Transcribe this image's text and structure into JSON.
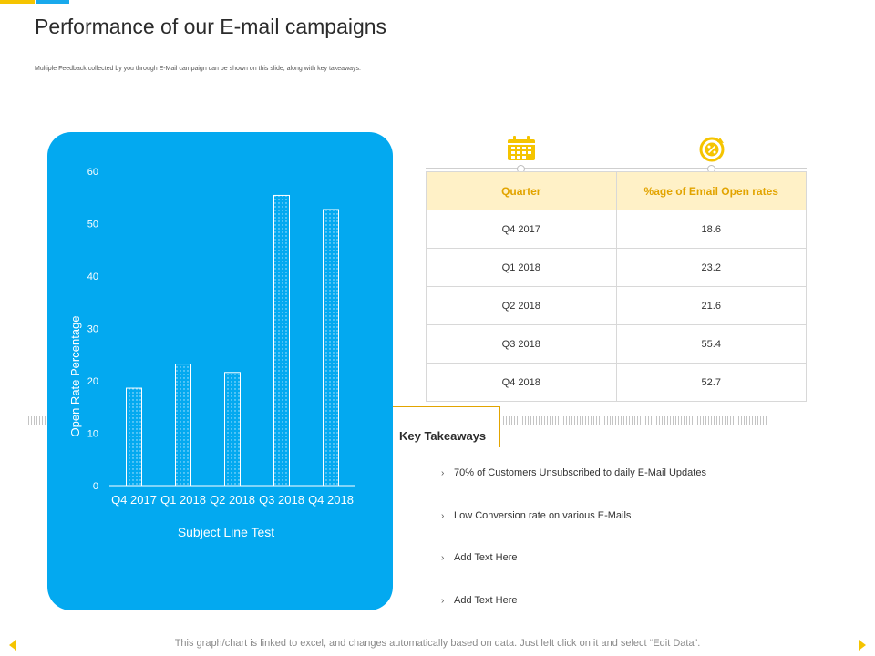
{
  "page": {
    "title": "Performance of our E-mail campaigns",
    "subtitle": "Multiple Feedback collected by you through E-Mail campaign can be shown on this slide, along with key takeaways.",
    "footer": "This graph/chart is linked to excel, and changes automatically based on data. Just left click on it and select “Edit Data”."
  },
  "colors": {
    "panel": "#03a9f0",
    "accent_yellow": "#f5c400",
    "header_bg": "#fff1c7",
    "header_text": "#e2a400"
  },
  "icons": {
    "calendar": "calendar-icon",
    "percent": "percent-cycle-icon"
  },
  "chart_data": {
    "type": "bar",
    "categories": [
      "Q4 2017",
      "Q1 2018",
      "Q2 2018",
      "Q3 2018",
      "Q4 2018"
    ],
    "values": [
      18.6,
      23.2,
      21.6,
      55.4,
      52.7
    ],
    "yticks": [
      0,
      10,
      20,
      30,
      40,
      50,
      60
    ],
    "ylim": [
      0,
      60
    ],
    "xlabel": "Subject Line Test",
    "ylabel": "Open Rate Percentage",
    "title": "",
    "grid": false,
    "legend": "none"
  },
  "table": {
    "headers": [
      "Quarter",
      "%age of Email Open rates"
    ],
    "rows": [
      [
        "Q4 2017",
        "18.6"
      ],
      [
        "Q1 2018",
        "23.2"
      ],
      [
        "Q2 2018",
        "21.6"
      ],
      [
        "Q3 2018",
        "55.4"
      ],
      [
        "Q4 2018",
        "52.7"
      ]
    ]
  },
  "takeaways": {
    "label": "Key Takeaways",
    "items": [
      "70% of Customers Unsubscribed to daily E-Mail Updates",
      "Low Conversion rate on various E-Mails",
      "Add Text Here",
      "Add Text Here"
    ]
  }
}
